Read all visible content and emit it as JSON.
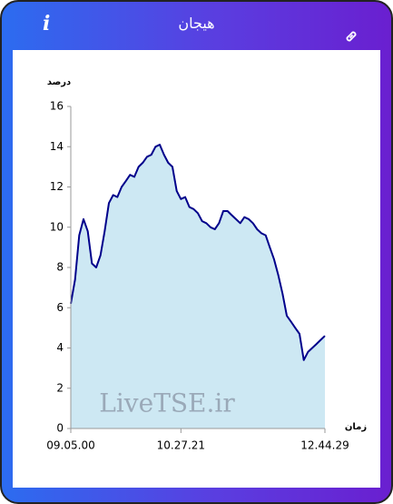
{
  "header": {
    "title": "هیجان",
    "info_label": "i"
  },
  "chart_data": {
    "type": "area",
    "y_label": "درصد",
    "x_label": "زمان",
    "watermark": "LiveTSE.ir",
    "categories": [
      "09.05.00",
      null,
      null,
      null,
      null,
      null,
      null,
      null,
      null,
      null,
      null,
      null,
      null,
      null,
      null,
      null,
      null,
      null,
      null,
      null,
      null,
      null,
      null,
      null,
      null,
      null,
      "10.27.21",
      null,
      null,
      null,
      null,
      null,
      null,
      null,
      null,
      null,
      null,
      null,
      null,
      null,
      null,
      null,
      null,
      null,
      null,
      null,
      null,
      null,
      null,
      null,
      null,
      null,
      null,
      null,
      null,
      null,
      null,
      null,
      null,
      null,
      "12.44.29"
    ],
    "series": [
      {
        "name": "هیجان",
        "color": "#00008b",
        "fill": "#cde8f3",
        "values": [
          6.2,
          7.4,
          9.6,
          10.4,
          9.8,
          8.2,
          8.0,
          8.6,
          9.8,
          11.2,
          11.6,
          11.5,
          12.0,
          12.3,
          12.6,
          12.5,
          13.0,
          13.2,
          13.5,
          13.6,
          14.0,
          14.1,
          13.6,
          13.2,
          13.0,
          11.8,
          11.4,
          11.5,
          11.0,
          10.9,
          10.7,
          10.3,
          10.2,
          10.0,
          9.9,
          10.2,
          10.8,
          10.8,
          10.6,
          10.4,
          10.2,
          10.5,
          10.4,
          10.2,
          9.9,
          9.7,
          9.6,
          9.0,
          8.4,
          7.6,
          6.7,
          5.6,
          5.3,
          5.0,
          4.7,
          3.4,
          3.8,
          4.0,
          4.2,
          4.4,
          4.6
        ]
      }
    ],
    "ylim": [
      0,
      16
    ],
    "yticks": [
      0,
      2,
      4,
      6,
      8,
      10,
      12,
      14,
      16
    ],
    "grid": false
  }
}
